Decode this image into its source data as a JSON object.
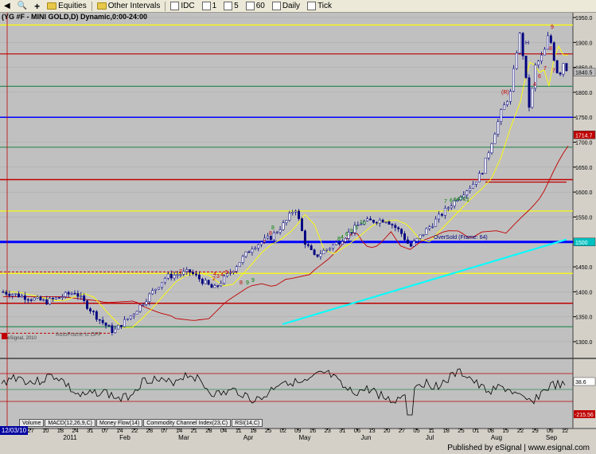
{
  "toolbar": {
    "back_label": "◀",
    "zoom_label": "🔍",
    "add_label": "+",
    "equities_label": "Equities",
    "other_intervals_label": "Other Intervals",
    "idc_label": "IDC",
    "interval_1": "1",
    "interval_5": "5",
    "interval_60": "60",
    "daily_label": "Daily",
    "tick_label": "Tick"
  },
  "chart": {
    "title": "(YG #F - MINI GOLD,D) Dynamic,0:00-24:00",
    "price_ticks": [
      "1950.0",
      "1900.0",
      "1850.0",
      "1800.0",
      "1750.0",
      "1700.0",
      "1650.0",
      "1600.0",
      "1550.0",
      "1500.0",
      "1450.0",
      "1400.0",
      "1350.0",
      "1300.0"
    ],
    "last_price_label": "1840.5",
    "ma_label": "1714.7",
    "cyan_label": "1500",
    "osc_value_label": "38.6",
    "osc_min_label": "-215.56",
    "oversold_label": "OverSold (Frame: 64)",
    "autoframe_label": "AutoFrame is OFF",
    "copyright_label": "© eSignal, 2010",
    "signal_labels": [
      {
        "t": "(R)",
        "c": "#c00000"
      },
      {
        "t": "H",
        "c": "#000080"
      },
      {
        "t": "9",
        "c": "#c00000"
      },
      {
        "t": "8",
        "c": "#c00000"
      },
      {
        "t": "7",
        "c": "#c00000"
      },
      {
        "t": "6",
        "c": "#c00000"
      },
      {
        "t": "4",
        "c": "#c00000"
      },
      {
        "t": "7",
        "c": "#c00000"
      },
      {
        "t": "2",
        "c": "#c00000"
      },
      {
        "t": "4",
        "c": "#c00000"
      },
      {
        "t": "8",
        "c": "#c00000"
      },
      {
        "t": "7",
        "c": "#c00000"
      },
      {
        "t": "2",
        "c": "#c00000"
      },
      {
        "t": "3",
        "c": "#c00000"
      },
      {
        "t": "4",
        "c": "#c00000"
      },
      {
        "t": "5",
        "c": "#c00000"
      },
      {
        "t": "8",
        "c": "#c00000"
      },
      {
        "t": "9",
        "c": "#008000"
      },
      {
        "t": "9",
        "c": "#008000"
      },
      {
        "t": "8",
        "c": "#008000"
      },
      {
        "t": "1",
        "c": "#008000"
      },
      {
        "t": "6",
        "c": "#008000"
      },
      {
        "t": "5",
        "c": "#008000"
      },
      {
        "t": "9",
        "c": "#008000"
      },
      {
        "t": "6",
        "c": "#008000"
      },
      {
        "t": "4",
        "c": "#008000"
      },
      {
        "t": "8",
        "c": "#008000"
      },
      {
        "t": "7",
        "c": "#008000"
      },
      {
        "t": "6",
        "c": "#008000"
      },
      {
        "t": "5",
        "c": "#008000"
      },
      {
        "t": "4",
        "c": "#008000"
      },
      {
        "t": "3",
        "c": "#008000"
      },
      {
        "t": "2",
        "c": "#008000"
      },
      {
        "t": "1",
        "c": "#008000"
      }
    ],
    "date_ticks": [
      "20",
      "27",
      "2011",
      "10",
      "18",
      "24",
      "31",
      "Feb",
      "07",
      "14",
      "22",
      "28",
      "Mar",
      "07",
      "14",
      "21",
      "28",
      "Apr",
      "04",
      "11",
      "18",
      "25",
      "May",
      "02",
      "09",
      "16",
      "23",
      "31",
      "Jun",
      "06",
      "13",
      "20",
      "27",
      "Jul",
      "05",
      "11",
      "18",
      "25",
      "Aug",
      "01",
      "08",
      "15",
      "22",
      "29",
      "Sep",
      "06",
      "12"
    ],
    "colors": {
      "background": "#c0c0c0",
      "yellow": "#ffff00",
      "red": "#c00000",
      "blue": "#0000ff",
      "green": "#2e8b57",
      "cyan": "#00ffff",
      "candle": "#000080"
    }
  },
  "indicator_tabs": [
    "Volume",
    "MACD(12,26,9,C)",
    "Money Flow(14)",
    "Commodity Channel Index(23,C)",
    "RSI(14,C)"
  ],
  "date_box": "12/03/10",
  "footer": {
    "publisher": "Published by eSignal | www.esignal.com"
  }
}
